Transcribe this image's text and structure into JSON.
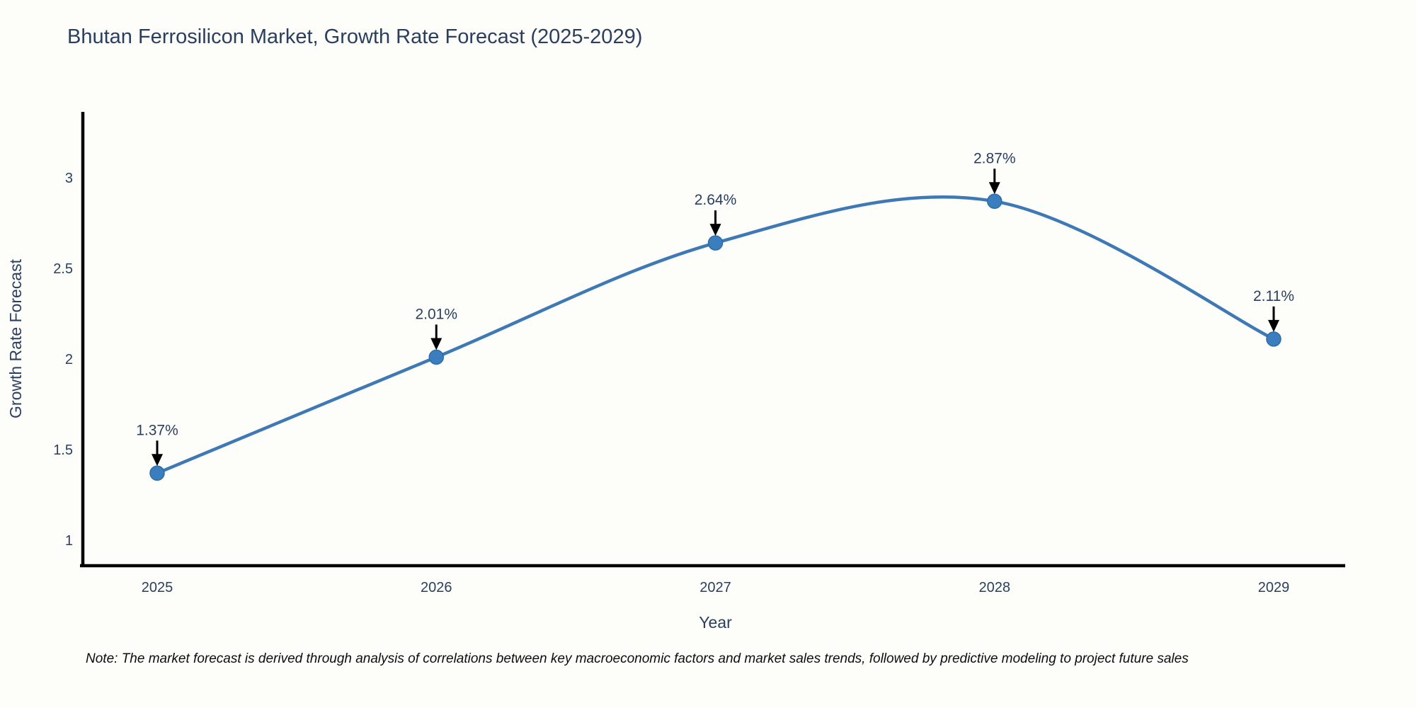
{
  "title": "Bhutan Ferrosilicon Market, Growth Rate Forecast (2025-2029)",
  "note": "Note: The market forecast is derived through analysis of correlations between key macroeconomic factors and market sales trends, followed by predictive modeling to project future sales",
  "chart_data": {
    "type": "line",
    "line_shape": "spline",
    "title": "Bhutan Ferrosilicon Market, Growth Rate Forecast (2025-2029)",
    "xlabel": "Year",
    "ylabel": "Growth Rate Forecast",
    "categories": [
      "2025",
      "2026",
      "2027",
      "2028",
      "2029"
    ],
    "x": [
      2025,
      2026,
      2027,
      2028,
      2029
    ],
    "values": [
      1.37,
      2.01,
      2.64,
      2.87,
      2.11
    ],
    "point_labels": [
      "1.37%",
      "2.01%",
      "2.64%",
      "2.87%",
      "2.11%"
    ],
    "yticks": [
      1,
      1.5,
      2,
      2.5,
      3
    ],
    "ylim": [
      0.86,
      3.36
    ],
    "grid": false,
    "legend": "none",
    "colors": {
      "line": "#3e79b5",
      "marker_fill": "#3a7ebf",
      "marker_edge": "#2e6da4",
      "axis": "#000000",
      "tick_text": "#2a3f5f",
      "annotation_text": "#2a3f5f",
      "arrow": "#000000",
      "background": "#fdfdf9"
    }
  }
}
